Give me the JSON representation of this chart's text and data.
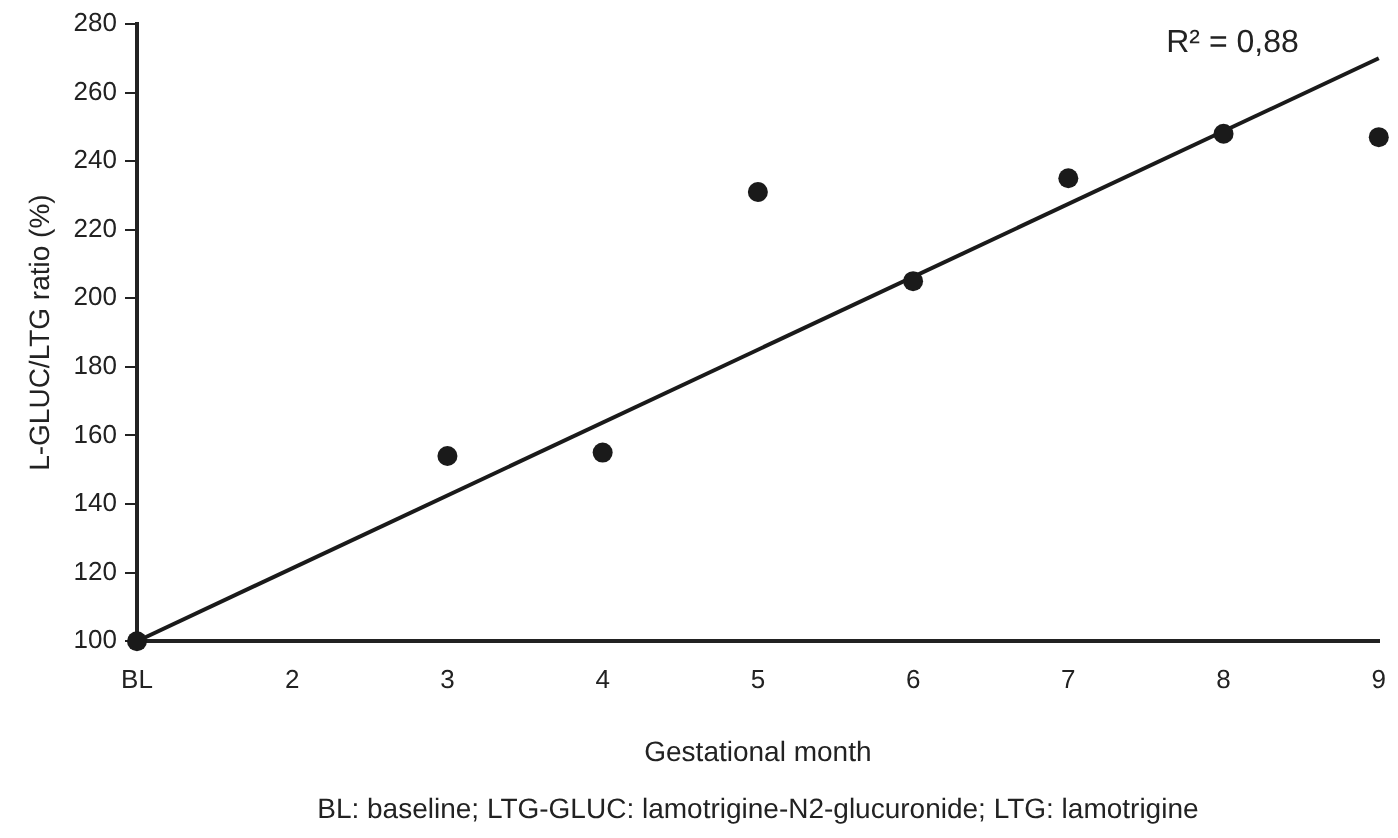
{
  "chart_data": {
    "type": "scatter",
    "xlabel": "Gestational month",
    "ylabel": "L-GLUC/LTG ratio (%)",
    "xlim": [
      1,
      9
    ],
    "xticks": [
      {
        "value": 1,
        "label": "BL"
      },
      2,
      3,
      4,
      5,
      6,
      7,
      8,
      9
    ],
    "ylim": [
      100,
      280
    ],
    "yticks": [
      100,
      120,
      140,
      160,
      180,
      200,
      220,
      240,
      260,
      280
    ],
    "series": [
      {
        "color": "#1a1a1a",
        "marker": "circle",
        "x": [
          1,
          3,
          4,
          5,
          6,
          7,
          8,
          9
        ],
        "values": [
          100,
          154,
          155,
          231,
          205,
          235,
          248,
          247
        ]
      },
      {
        "type": "line",
        "color": "#1a1a1a",
        "marker": "none",
        "line_style": "solid",
        "x": [
          1,
          9
        ],
        "values": [
          100,
          270
        ]
      }
    ],
    "annotations": [
      "R² = 0,88",
      "BL: baseline; LTG-GLUC: lamotrigine-N2-glucuronide; LTG: lamotrigine"
    ],
    "grid": false,
    "legend": false
  }
}
